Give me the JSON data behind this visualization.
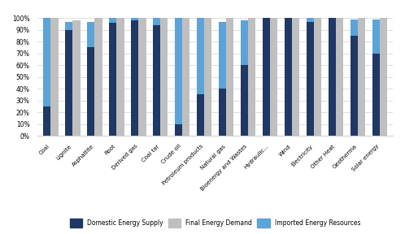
{
  "categories": [
    "Coal",
    "Lignite",
    "Asphaltite",
    "Root",
    "Derived gas",
    "Coal tar",
    "Crude oil",
    "Petroleum products",
    "Natural gas",
    "Bioenergy and Wastes",
    "Hydraulic...",
    "Wind",
    "Electricity",
    "Other Heat",
    "Geotherma",
    "Solar energy"
  ],
  "domestic": [
    0.25,
    0.9,
    0.75,
    0.96,
    0.98,
    0.94,
    0.1,
    0.35,
    0.4,
    0.6,
    1.0,
    1.0,
    0.97,
    1.0,
    0.85,
    0.7
  ],
  "imported": [
    0.75,
    0.07,
    0.22,
    0.04,
    0.02,
    0.06,
    0.9,
    0.65,
    0.57,
    0.38,
    0.0,
    0.0,
    0.03,
    0.0,
    0.14,
    0.29
  ],
  "final_demand": [
    1.0,
    0.98,
    1.0,
    1.0,
    1.0,
    1.0,
    1.0,
    1.0,
    1.0,
    1.0,
    1.0,
    1.0,
    1.0,
    1.0,
    1.0,
    1.0
  ],
  "domestic_color": "#1F3864",
  "final_demand_color": "#BFBFBF",
  "imported_color": "#5BA3D9",
  "bg_color": "#FFFFFF",
  "legend_labels": [
    "Domestic Energy Supply",
    "Final Energy Demand",
    "Imported Energy Resources"
  ],
  "bar_width": 0.35,
  "ylim": [
    0,
    1.05
  ]
}
